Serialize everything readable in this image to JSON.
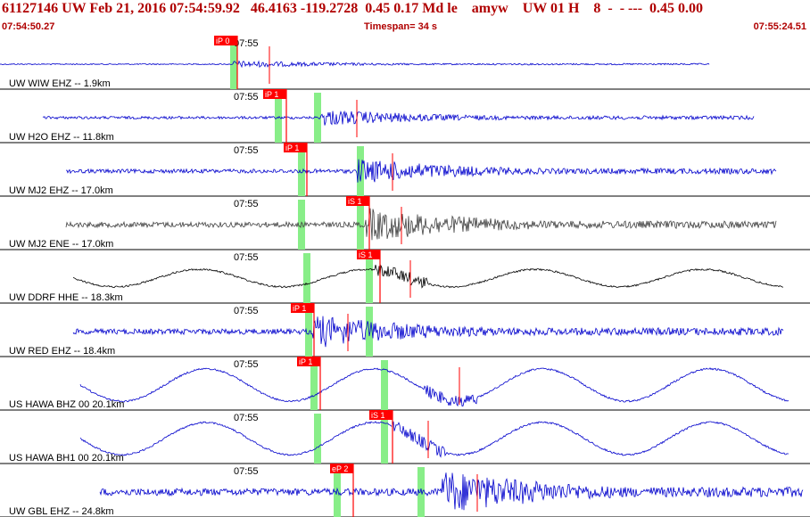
{
  "header": {
    "title": "61127146 UW Feb 21, 2016 07:54:59.92   46.4163 -119.2728  0.45 0.17 Md le    amyw    UW 01 H    8  -  - ---  0.45 0.00",
    "start_time": "07:54:50.27",
    "timespan": "Timespan=  34 s",
    "end_time": "07:55:24.51"
  },
  "chart_data": {
    "type": "line",
    "time_tick_label": "07:55",
    "colors": {
      "blue": "#0000cc",
      "gray": "#404040",
      "black": "#000000",
      "pick": "#ff0000",
      "window": "#88ee88"
    },
    "traces": [
      {
        "label": "UW WIW EHZ -- 1.9km",
        "color": "blue",
        "kind": "noise",
        "picks": [
          {
            "label": "iP 0"
          }
        ]
      },
      {
        "label": "UW H2O EHZ -- 11.8km",
        "color": "blue",
        "kind": "noise",
        "picks": [
          {
            "label": "iP 1"
          }
        ]
      },
      {
        "label": "UW MJ2 EHZ -- 17.0km",
        "color": "blue",
        "kind": "noise",
        "picks": [
          {
            "label": "iP 1"
          }
        ]
      },
      {
        "label": "UW MJ2 ENE -- 17.0km",
        "color": "gray",
        "kind": "noise",
        "picks": [
          {
            "label": "iS 1"
          }
        ]
      },
      {
        "label": "UW DDRF HHE -- 18.3km",
        "color": "black",
        "kind": "wave",
        "picks": [
          {
            "label": "iS 1"
          }
        ]
      },
      {
        "label": "UW RED EHZ -- 18.4km",
        "color": "blue",
        "kind": "noise",
        "picks": [
          {
            "label": "iP 1"
          }
        ]
      },
      {
        "label": "US HAWA BHZ 00 20.1km",
        "color": "blue",
        "kind": "wave",
        "picks": [
          {
            "label": "iP 1"
          }
        ]
      },
      {
        "label": "US HAWA BH1 00 20.1km",
        "color": "blue",
        "kind": "wave",
        "picks": [
          {
            "label": "iS 1"
          }
        ]
      },
      {
        "label": "UW GBL EHZ -- 24.8km",
        "color": "blue",
        "kind": "noise",
        "picks": [
          {
            "label": "eP 2"
          }
        ]
      }
    ]
  }
}
